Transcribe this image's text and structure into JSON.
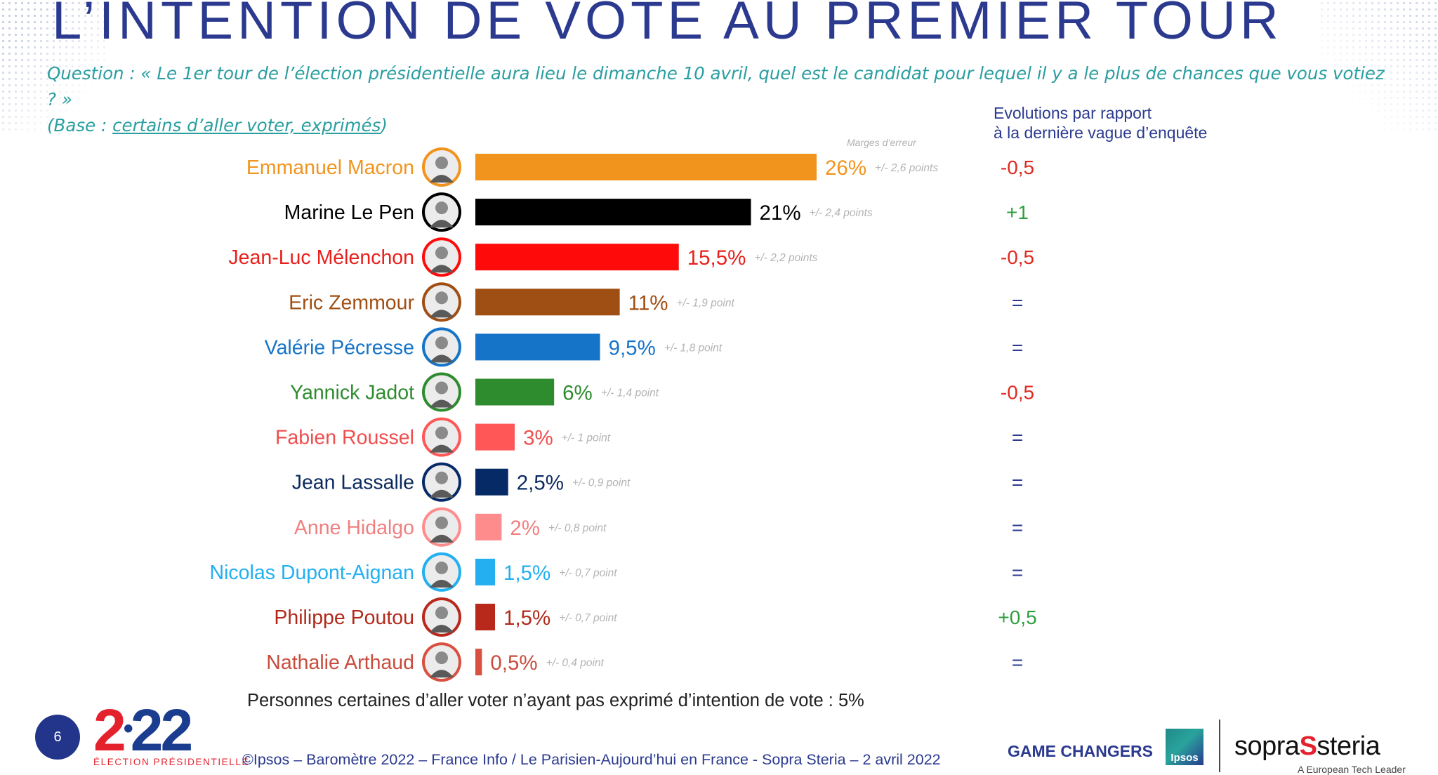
{
  "title": "L’INTENTION DE VOTE AU PREMIER TOUR",
  "question": {
    "line1": "Question : « Le 1er tour de l’élection présidentielle aura lieu le dimanche 10 avril, quel est le candidat pour lequel il y a le plus de chances que vous votiez ? »",
    "base_prefix": "(Base : ",
    "base_link": "certains d’aller voter, exprimés",
    "base_suffix": ")"
  },
  "evolution_header": {
    "line1": "Evolutions par rapport",
    "line2": "à la dernière vague d’enquête"
  },
  "margins_header": "Marges d’erreur",
  "chart_data": {
    "type": "bar",
    "orientation": "horizontal",
    "unit": "%",
    "xlim": [
      0,
      26
    ],
    "grid": false,
    "categories": [
      "Emmanuel Macron",
      "Marine Le Pen",
      "Jean-Luc Mélenchon",
      "Eric Zemmour",
      "Valérie Pécresse",
      "Yannick Jadot",
      "Fabien Roussel",
      "Jean Lassalle",
      "Anne Hidalgo",
      "Nicolas Dupont-Aignan",
      "Philippe Poutou",
      "Nathalie Arthaud"
    ],
    "values": [
      26,
      21,
      15.5,
      11,
      9.5,
      6,
      3,
      2.5,
      2,
      1.5,
      1.5,
      0.5
    ],
    "value_labels": [
      "26%",
      "21%",
      "15,5%",
      "11%",
      "9,5%",
      "6%",
      "3%",
      "2,5%",
      "2%",
      "1,5%",
      "1,5%",
      "0,5%"
    ],
    "margins": [
      "+/- 2,6 points",
      "+/- 2,4 points",
      "+/- 2,2 points",
      "+/- 1,9 point",
      "+/- 1,8 point",
      "+/- 1,4 point",
      "+/- 1 point",
      "+/- 0,9 point",
      "+/- 0,8 point",
      "+/- 0,7 point",
      "+/- 0,7 point",
      "+/- 0,4 point"
    ],
    "evolutions": [
      "-0,5",
      "+1",
      "-0,5",
      "=",
      "=",
      "-0,5",
      "=",
      "=",
      "=",
      "=",
      "+0,5",
      "="
    ],
    "colors": [
      "#f0941e",
      "#000000",
      "#ff0a0a",
      "#a04f14",
      "#1674c8",
      "#2e8b2e",
      "#ff5757",
      "#062a66",
      "#ff8c8c",
      "#23aff0",
      "#b8291c",
      "#d85040"
    ],
    "label_colors": [
      "#f0941e",
      "#000000",
      "#e8201c",
      "#a04f14",
      "#1674c8",
      "#2e8b2e",
      "#ef4e4e",
      "#0b2a5e",
      "#f08080",
      "#23aff0",
      "#b22a1c",
      "#c84c3c"
    ]
  },
  "evolution_colors": {
    "negative": "#e02a20",
    "positive": "#2e9e3e",
    "neutral": "#2b3a8f"
  },
  "footnote": "Personnes certaines d’aller voter n’ayant pas exprimé d’intention de vote : 5%",
  "page_number": "6",
  "logo": {
    "digit_first": "2",
    "dot": "•",
    "digits_rest": "22",
    "subtitle": "ÉLECTION PRÉSIDENTIELLE"
  },
  "copyright": "©Ipsos – Baromètre 2022 – France Info / Le Parisien-Aujourd’hui en France - Sopra Steria – 2 avril 2022",
  "game_changers": "GAME CHANGERS",
  "ipsos_logo": "Ipsos",
  "sopra": {
    "left": "sopra",
    "mark": "S",
    "right": "steria",
    "tagline": "A European Tech Leader"
  }
}
